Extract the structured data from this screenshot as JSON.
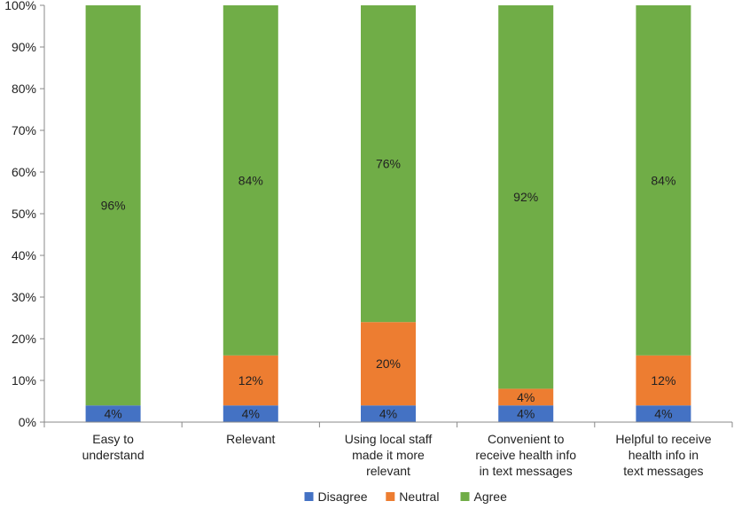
{
  "chart_data": {
    "type": "bar",
    "stacked": true,
    "percent": true,
    "categories": [
      [
        "Easy to",
        "understand"
      ],
      [
        "Relevant"
      ],
      [
        "Using local staff",
        "made it more",
        "relevant"
      ],
      [
        "Convenient to",
        "receive health info",
        "in text messages"
      ],
      [
        "Helpful to receive",
        "health info in",
        "text messages"
      ]
    ],
    "series": [
      {
        "name": "Disagree",
        "color": "#4472C4",
        "values": [
          4,
          4,
          4,
          4,
          4
        ],
        "labels": [
          "4%",
          "4%",
          "4%",
          "4%",
          "4%"
        ]
      },
      {
        "name": "Neutral",
        "color": "#ED7D31",
        "values": [
          0,
          12,
          20,
          4,
          12
        ],
        "labels": [
          "",
          "12%",
          "20%",
          "4%",
          "12%"
        ]
      },
      {
        "name": "Agree",
        "color": "#70AD47",
        "values": [
          96,
          84,
          76,
          92,
          84
        ],
        "labels": [
          "96%",
          "84%",
          "76%",
          "92%",
          "84%"
        ]
      }
    ],
    "yticks": [
      "0%",
      "10%",
      "20%",
      "30%",
      "40%",
      "50%",
      "60%",
      "70%",
      "80%",
      "90%",
      "100%"
    ],
    "ylim": [
      0,
      100
    ],
    "legend_position": "bottom",
    "grid": false
  }
}
